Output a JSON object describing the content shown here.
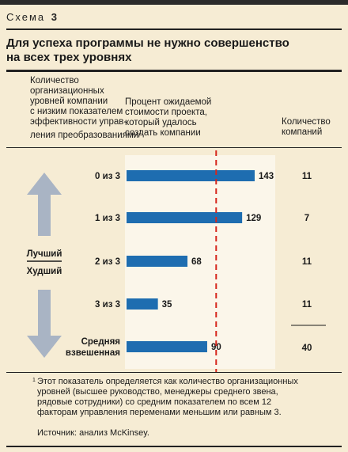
{
  "header": {
    "scheme_label": "Схема",
    "scheme_number": "3",
    "title_line1": "Для успеха программы не нужно совершенство",
    "title_line2": "на всех трех уровнях"
  },
  "columns": {
    "left": [
      "Количество",
      "организационных",
      "уровней компании",
      "с низким показателем",
      "эффективности управ-",
      "ления преобразованиями"
    ],
    "left_footnote_mark": "1",
    "middle": [
      "Процент ожидаемой",
      "стоимости проекта,",
      "который удалось",
      "создать компании"
    ],
    "right": [
      "Количество",
      "компаний"
    ]
  },
  "axis_arrow": {
    "better": "Лучший",
    "worse": "Худший"
  },
  "chart_data": {
    "type": "bar",
    "orientation": "horizontal",
    "categories": [
      "0 из 3",
      "1 из 3",
      "2 из 3",
      "3 из 3",
      "Средняя взвешенная"
    ],
    "values": [
      143,
      129,
      68,
      35,
      90
    ],
    "companies": [
      "11",
      "7",
      "11",
      "11",
      "40"
    ],
    "reference_line": 100,
    "xlim": [
      0,
      143
    ],
    "bar_color": "#1e6db0",
    "reference_color": "#d6261c"
  },
  "footnote": {
    "mark": "1",
    "text": "Этот показатель определяется как количество организационных уровней (высшее руководство, менеджеры среднего звена, рядовые сотрудники) со средним показателем по всем 12 факторам управления переменами меньшим или равным 3."
  },
  "source": "Источник: анализ McKinsey.",
  "colors": {
    "background": "#f6ecd4",
    "arrow": "#a9b4c4",
    "text": "#1a1a1a"
  }
}
